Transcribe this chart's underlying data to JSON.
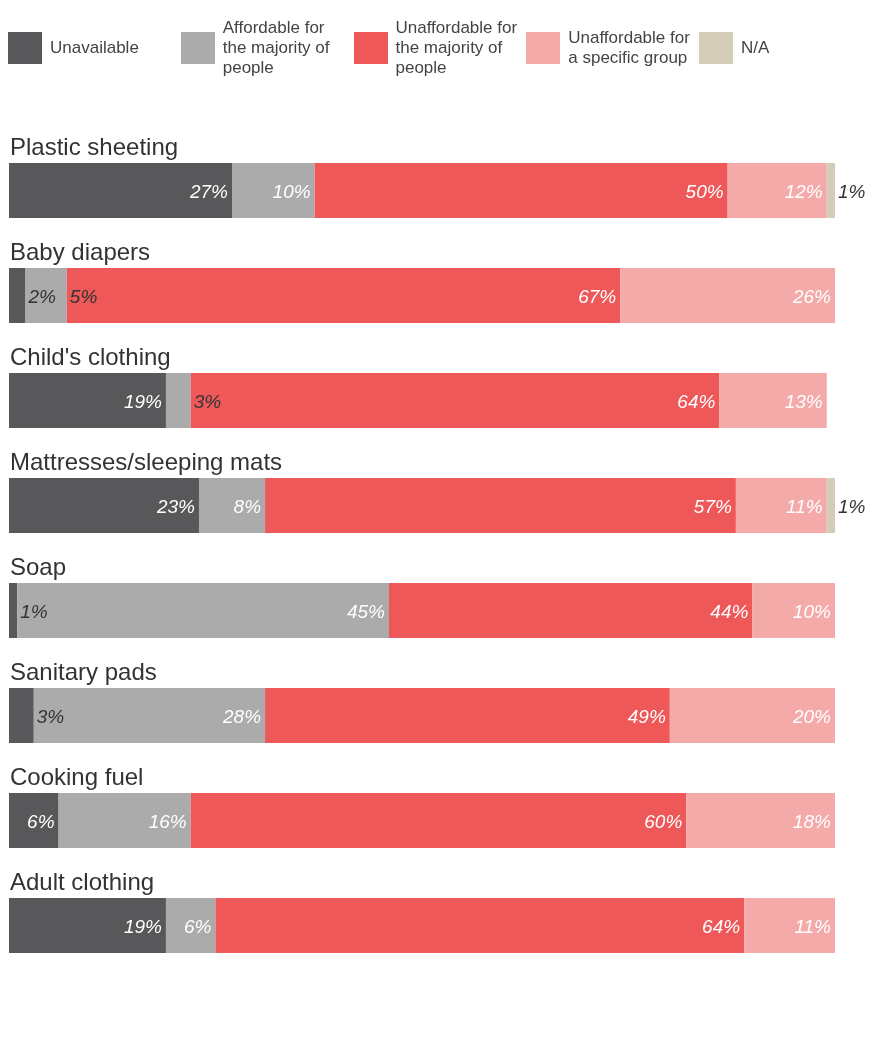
{
  "chart_data": {
    "type": "bar",
    "orientation": "horizontal",
    "stacked": true,
    "legend": "top",
    "categories": [
      "Plastic sheeting",
      "Baby diapers",
      "Child's clothing",
      "Mattresses/sleeping mats",
      "Soap",
      "Sanitary pads",
      "Cooking fuel",
      "Adult clothing"
    ],
    "series": [
      {
        "name": "Unavailable",
        "color": "#58585a",
        "values": [
          27,
          2,
          19,
          23,
          1,
          3,
          6,
          19
        ],
        "value_labels": [
          "27%",
          "2%",
          "19%",
          "23%",
          "1%",
          "3%",
          "6%",
          "19%"
        ]
      },
      {
        "name": "Affordable for the majority of people",
        "color": "#ababab",
        "values": [
          10,
          5,
          3,
          8,
          45,
          28,
          16,
          6
        ],
        "value_labels": [
          "10%",
          "5%",
          "3%",
          "8%",
          "45%",
          "28%",
          "16%",
          "6%"
        ]
      },
      {
        "name": "Unaffordable for the majority of people",
        "color": "#ee5859",
        "values": [
          50,
          67,
          64,
          57,
          44,
          49,
          60,
          64
        ],
        "value_labels": [
          "50%",
          "67%",
          "64%",
          "57%",
          "44%",
          "49%",
          "60%",
          "64%"
        ]
      },
      {
        "name": "Unaffordable for a specific group",
        "color": "#f5aaaa",
        "values": [
          12,
          26,
          13,
          11,
          10,
          20,
          18,
          11
        ],
        "value_labels": [
          "12%",
          "26%",
          "13%",
          "11%",
          "10%",
          "20%",
          "18%",
          "11%"
        ]
      },
      {
        "name": "N/A",
        "color": "#d4cbb8",
        "values": [
          1,
          null,
          null,
          1,
          null,
          null,
          null,
          null
        ],
        "value_labels": [
          "1%",
          null,
          null,
          "1%",
          null,
          null,
          null,
          null
        ]
      }
    ]
  }
}
